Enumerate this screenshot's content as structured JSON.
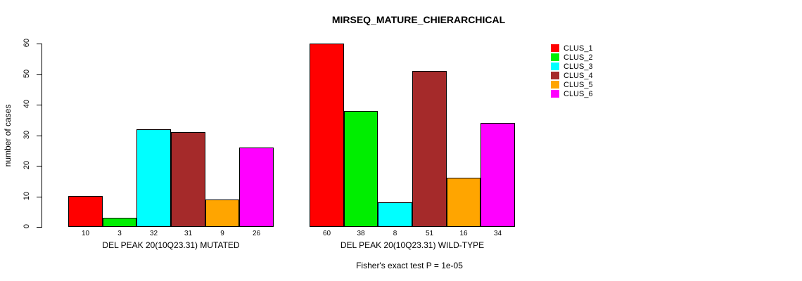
{
  "chart_data": {
    "type": "bar",
    "title": "MIRSEQ_MATURE_CHIERARCHICAL",
    "ylabel": "number of cases",
    "xlabel": "",
    "ylim": [
      0,
      60
    ],
    "yticks": [
      0,
      10,
      20,
      30,
      40,
      50,
      60
    ],
    "grid": false,
    "legend_position": "top-right-outside",
    "categories": [
      "DEL PEAK 20(10Q23.31) MUTATED",
      "DEL PEAK 20(10Q23.31) WILD-TYPE"
    ],
    "series": [
      {
        "name": "CLUS_1",
        "color": "#ff0000",
        "values": [
          10,
          60
        ]
      },
      {
        "name": "CLUS_2",
        "color": "#00ee00",
        "values": [
          3,
          38
        ]
      },
      {
        "name": "CLUS_3",
        "color": "#00ffff",
        "values": [
          32,
          8
        ]
      },
      {
        "name": "CLUS_4",
        "color": "#a52a2a",
        "values": [
          31,
          51
        ]
      },
      {
        "name": "CLUS_5",
        "color": "#ffa500",
        "values": [
          9,
          16
        ]
      },
      {
        "name": "CLUS_6",
        "color": "#ff00ff",
        "values": [
          26,
          34
        ]
      }
    ],
    "bar_value_labels": [
      [
        10,
        3,
        32,
        31,
        9,
        26
      ],
      [
        60,
        38,
        8,
        51,
        16,
        34
      ]
    ],
    "annotation": "Fisher's exact test P = 1e-05"
  }
}
